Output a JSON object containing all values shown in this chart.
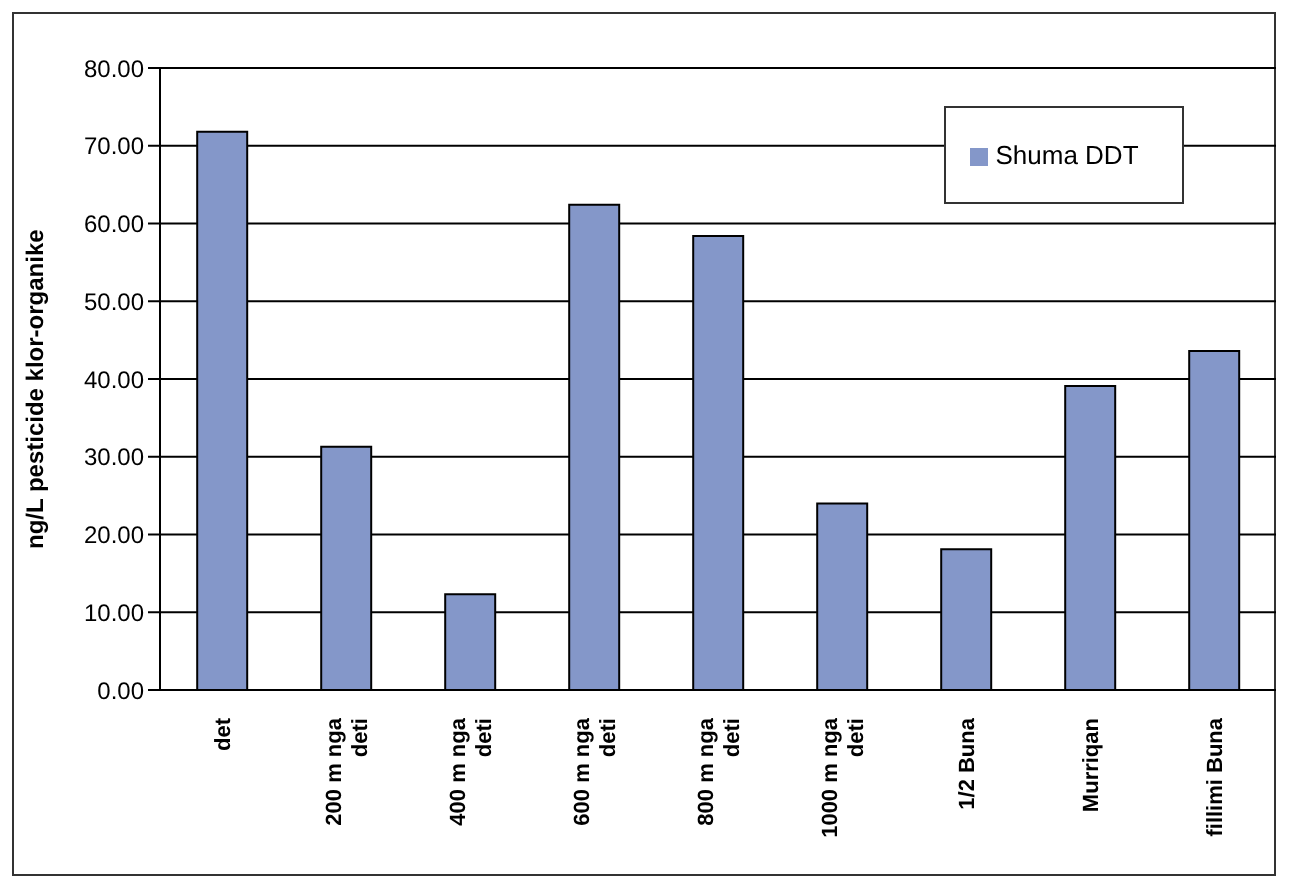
{
  "chart_data": {
    "type": "bar",
    "ylabel": "ng/L pesticide klor-organike",
    "categories": [
      "det",
      "200 m nga deti",
      "400 m nga deti",
      "600 m nga deti",
      "800 m nga deti",
      "1000 m nga deti",
      "1/2 Buna",
      "Murriqan",
      "fillimi Buna"
    ],
    "series": [
      {
        "name": "Shuma DDT",
        "color": "#8497c9",
        "values": [
          71.8,
          31.3,
          12.3,
          62.4,
          58.4,
          24.0,
          18.1,
          39.1,
          43.6
        ]
      }
    ],
    "ylim": [
      0,
      80
    ],
    "yticks": [
      {
        "value": 0,
        "label": "0.00"
      },
      {
        "value": 10,
        "label": "10.00"
      },
      {
        "value": 20,
        "label": "20.00"
      },
      {
        "value": 30,
        "label": "30.00"
      },
      {
        "value": 40,
        "label": "40.00"
      },
      {
        "value": 50,
        "label": "50.00"
      },
      {
        "value": 60,
        "label": "60.00"
      },
      {
        "value": 70,
        "label": "70.00"
      },
      {
        "value": 80,
        "label": "80.00"
      }
    ],
    "grid": "y",
    "legend": "top right"
  }
}
